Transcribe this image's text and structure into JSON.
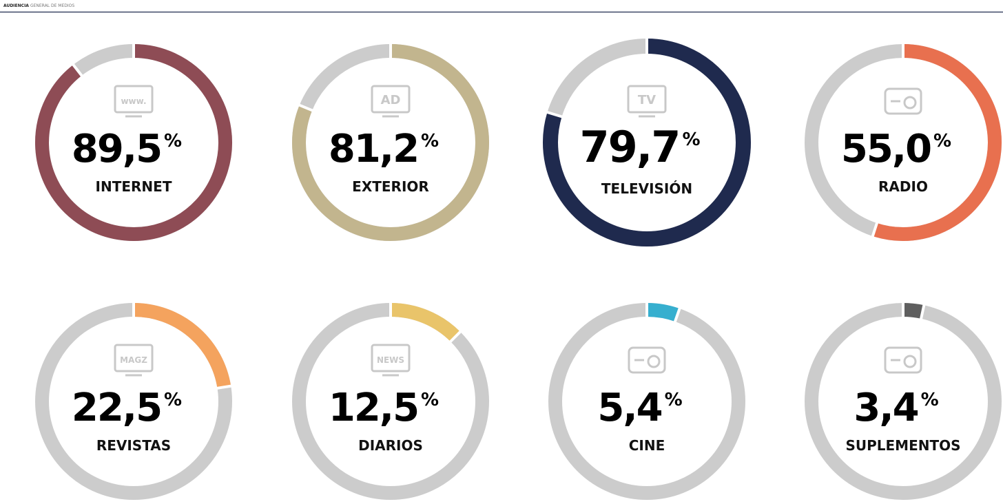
{
  "header": {
    "title_strong": "AUDIENCIA",
    "title_rest": "GENERAL DE MEDIOS"
  },
  "chart_data": [
    {
      "type": "donut",
      "categories": [
        "INTERNET"
      ],
      "values": [
        89.5
      ],
      "value_labels": [
        "89,5"
      ],
      "unit": "%",
      "color": "#8e4c55",
      "ylim": [
        0,
        100
      ],
      "icon_text": "www."
    },
    {
      "type": "donut",
      "categories": [
        "EXTERIOR"
      ],
      "values": [
        81.2
      ],
      "value_labels": [
        "81,2"
      ],
      "unit": "%",
      "color": "#c2b58e",
      "ylim": [
        0,
        100
      ],
      "icon_text": "AD"
    },
    {
      "type": "donut",
      "categories": [
        "TELEVISIÓN"
      ],
      "values": [
        79.7
      ],
      "value_labels": [
        "79,7"
      ],
      "unit": "%",
      "color": "#1f2a4e",
      "ylim": [
        0,
        100
      ],
      "icon_text": "TV"
    },
    {
      "type": "donut",
      "categories": [
        "RADIO"
      ],
      "values": [
        55.0
      ],
      "value_labels": [
        "55,0"
      ],
      "unit": "%",
      "color": "#e8704f",
      "ylim": [
        0,
        100
      ]
    },
    {
      "type": "donut",
      "categories": [
        "REVISTAS"
      ],
      "values": [
        22.5
      ],
      "value_labels": [
        "22,5"
      ],
      "unit": "%",
      "color": "#f4a35e",
      "ylim": [
        0,
        100
      ],
      "icon_text": "MAGZ"
    },
    {
      "type": "donut",
      "categories": [
        "DIARIOS"
      ],
      "values": [
        12.5
      ],
      "value_labels": [
        "12,5"
      ],
      "unit": "%",
      "color": "#e9c46a",
      "ylim": [
        0,
        100
      ],
      "icon_text": "NEWS"
    },
    {
      "type": "donut",
      "categories": [
        "CINE"
      ],
      "values": [
        5.4
      ],
      "value_labels": [
        "5,4"
      ],
      "unit": "%",
      "color": "#36afcf",
      "ylim": [
        0,
        100
      ]
    },
    {
      "type": "donut",
      "categories": [
        "SUPLEMENTOS"
      ],
      "values": [
        3.4
      ],
      "value_labels": [
        "3,4"
      ],
      "unit": "%",
      "color": "#5f5f5f",
      "ylim": [
        0,
        100
      ]
    }
  ]
}
